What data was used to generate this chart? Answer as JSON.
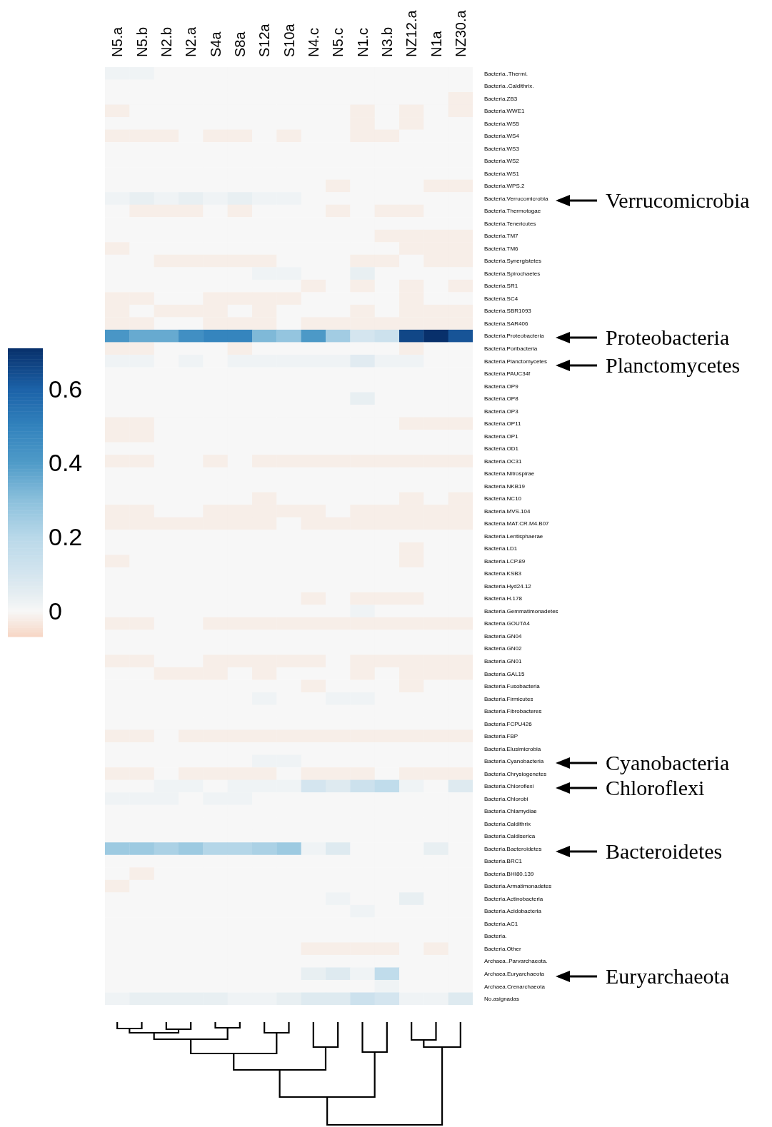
{
  "chart_data": {
    "type": "heatmap",
    "categories": [
      "N5.a",
      "N5.b",
      "N2.b",
      "N2.a",
      "S4a",
      "S8a",
      "S12a",
      "S10a",
      "N4.c",
      "N5.c",
      "N1.c",
      "N3.b",
      "NZ12.a",
      "N1a",
      "NZ30.a"
    ],
    "y_categories": [
      "Bacteria..Thermi.",
      "Bacteria..Caldithrix.",
      "Bacteria.ZB3",
      "Bacteria.WWE1",
      "Bacteria.WS5",
      "Bacteria.WS4",
      "Bacteria.WS3",
      "Bacteria.WS2",
      "Bacteria.WS1",
      "Bacteria.WPS.2",
      "Bacteria.Verrucomicrobia",
      "Bacteria.Thermotogae",
      "Bacteria.Tenericutes",
      "Bacteria.TM7",
      "Bacteria.TM6",
      "Bacteria.Synergistetes",
      "Bacteria.Spirochaetes",
      "Bacteria.SR1",
      "Bacteria.SC4",
      "Bacteria.SBR1093",
      "Bacteria.SAR406",
      "Bacteria.Proteobacteria",
      "Bacteria.Poribacteria",
      "Bacteria.Planctomycetes",
      "Bacteria.PAUC34f",
      "Bacteria.OP9",
      "Bacteria.OP8",
      "Bacteria.OP3",
      "Bacteria.OP11",
      "Bacteria.OP1",
      "Bacteria.OD1",
      "Bacteria.OC31",
      "Bacteria.Nitrospirae",
      "Bacteria.NKB19",
      "Bacteria.NC10",
      "Bacteria.MVS.104",
      "Bacteria.MAT.CR.M4.B07",
      "Bacteria.Lentisphaerae",
      "Bacteria.LD1",
      "Bacteria.LCP.89",
      "Bacteria.KSB3",
      "Bacteria.Hyd24.12",
      "Bacteria.H.178",
      "Bacteria.Gemmatimonadetes",
      "Bacteria.GOUTA4",
      "Bacteria.GN04",
      "Bacteria.GN02",
      "Bacteria.GN01",
      "Bacteria.GAL15",
      "Bacteria.Fusobacteria",
      "Bacteria.Firmicutes",
      "Bacteria.Fibrobacteres",
      "Bacteria.FCPU426",
      "Bacteria.FBP",
      "Bacteria.Elusimicrobia",
      "Bacteria.Cyanobacteria",
      "Bacteria.Chrysiogenetes",
      "Bacteria.Chloroflexi",
      "Bacteria.Chlorobi",
      "Bacteria.Chlamydiae",
      "Bacteria.Caldithrix",
      "Bacteria.Caldiserica",
      "Bacteria.Bacteroidetes",
      "Bacteria.BRC1",
      "Bacteria.BHI80.139",
      "Bacteria.Armatimonadetes",
      "Bacteria.Actinobacteria",
      "Bacteria.Acidobacteria",
      "Bacteria.AC1",
      "Bacteria.",
      "Bacteria.Other",
      "Archaea..Parvarchaeota.",
      "Archaea.Euryarchaeota",
      "Archaea.Crenarchaeota",
      "No.asignadas"
    ],
    "cells": [
      [
        0.02,
        0.02,
        0,
        0,
        0,
        0,
        0,
        0,
        0,
        0,
        0,
        0,
        0,
        0,
        0
      ],
      [
        0,
        0,
        0,
        0,
        0,
        0,
        0,
        0,
        0,
        0,
        0,
        0,
        0,
        0,
        0
      ],
      [
        0,
        0,
        0,
        0,
        0,
        0,
        0,
        0,
        0,
        0,
        0,
        0,
        0,
        0,
        -0.02
      ],
      [
        -0.02,
        0,
        0,
        0,
        0,
        0,
        0,
        0,
        0,
        0,
        -0.02,
        0,
        -0.02,
        0,
        -0.02
      ],
      [
        0,
        0,
        0,
        0,
        0,
        0,
        0,
        0,
        0,
        0,
        -0.02,
        0,
        -0.02,
        0,
        0
      ],
      [
        -0.02,
        -0.02,
        -0.02,
        0,
        -0.02,
        -0.02,
        0,
        -0.02,
        0,
        0,
        -0.02,
        -0.02,
        0,
        0,
        0
      ],
      [
        0,
        0,
        0,
        0,
        0,
        0,
        0,
        0,
        0,
        0,
        0,
        0,
        0,
        0,
        0
      ],
      [
        0,
        0,
        0,
        0,
        0,
        0,
        0,
        0,
        0,
        0,
        0,
        0,
        0,
        0,
        0
      ],
      [
        0,
        0,
        0,
        0,
        0,
        0,
        0,
        0,
        0,
        0,
        0,
        0,
        0,
        0,
        0
      ],
      [
        0,
        0,
        0,
        0,
        0,
        0,
        0,
        0,
        0,
        -0.02,
        0,
        0,
        0,
        -0.02,
        -0.02
      ],
      [
        0.02,
        0.04,
        0.02,
        0.04,
        0.02,
        0.04,
        0.02,
        0.02,
        0,
        0,
        0,
        0,
        0,
        0,
        0
      ],
      [
        0,
        -0.02,
        -0.02,
        -0.02,
        0,
        -0.02,
        0,
        0,
        0,
        -0.02,
        0,
        -0.02,
        -0.02,
        0,
        0
      ],
      [
        0,
        0,
        0,
        0,
        0,
        0,
        0,
        0,
        0,
        0,
        0,
        0,
        0,
        0,
        0
      ],
      [
        0,
        0,
        0,
        0,
        0,
        0,
        0,
        0,
        0,
        0,
        0,
        -0.02,
        -0.02,
        -0.02,
        -0.02
      ],
      [
        -0.02,
        0,
        0,
        0,
        0,
        0,
        0,
        0,
        0,
        0,
        0,
        0,
        -0.02,
        -0.02,
        -0.02
      ],
      [
        0,
        0,
        -0.02,
        -0.02,
        -0.02,
        -0.02,
        -0.02,
        0,
        0,
        0,
        -0.02,
        -0.02,
        0,
        -0.02,
        -0.02
      ],
      [
        0,
        0,
        0,
        0,
        0,
        0,
        0.02,
        0.02,
        0,
        0,
        0.04,
        0,
        0,
        0,
        0
      ],
      [
        0,
        0,
        0,
        0,
        0,
        0,
        0,
        0,
        -0.02,
        0,
        -0.02,
        0,
        -0.02,
        0,
        -0.02
      ],
      [
        -0.02,
        -0.02,
        0,
        0,
        -0.02,
        -0.02,
        -0.02,
        -0.02,
        0,
        0,
        0,
        0,
        -0.02,
        0,
        0
      ],
      [
        -0.02,
        0,
        -0.02,
        -0.02,
        -0.02,
        0,
        -0.02,
        0,
        0,
        0,
        -0.02,
        0,
        -0.02,
        -0.02,
        -0.02
      ],
      [
        -0.02,
        -0.02,
        0,
        0,
        -0.02,
        -0.02,
        -0.02,
        0,
        -0.02,
        -0.02,
        -0.02,
        -0.02,
        -0.02,
        -0.02,
        -0.02
      ],
      [
        0.42,
        0.36,
        0.36,
        0.45,
        0.49,
        0.49,
        0.32,
        0.28,
        0.41,
        0.25,
        0.1,
        0.13,
        0.66,
        0.71,
        0.63
      ],
      [
        -0.02,
        -0.02,
        0,
        0,
        0,
        -0.02,
        0,
        0,
        0,
        0,
        0,
        0,
        -0.02,
        0,
        0
      ],
      [
        0.02,
        0.02,
        0,
        0.02,
        0,
        0.02,
        0.02,
        0.02,
        0.02,
        0.02,
        0.06,
        0.02,
        0.02,
        0,
        0
      ],
      [
        0,
        0,
        0,
        0,
        0,
        0,
        0,
        0,
        0,
        0,
        0,
        0,
        0,
        0,
        0
      ],
      [
        0,
        0,
        0,
        0,
        0,
        0,
        0,
        0,
        0,
        0,
        0,
        0,
        0,
        0,
        0
      ],
      [
        0,
        0,
        0,
        0,
        0,
        0,
        0,
        0,
        0,
        0,
        0.04,
        0,
        0,
        0,
        0
      ],
      [
        0,
        0,
        0,
        0,
        0,
        0,
        0,
        0,
        0,
        0,
        0,
        0,
        0,
        0,
        0
      ],
      [
        -0.02,
        -0.02,
        0,
        0,
        0,
        0,
        0,
        0,
        0,
        0,
        0,
        0,
        -0.02,
        -0.02,
        -0.02
      ],
      [
        -0.02,
        -0.02,
        0,
        0,
        0,
        0,
        0,
        0,
        0,
        0,
        0,
        0,
        0,
        0,
        0
      ],
      [
        0,
        0,
        0,
        0,
        0,
        0,
        0,
        0,
        0,
        0,
        0,
        0,
        0,
        0,
        0
      ],
      [
        -0.02,
        -0.02,
        0,
        0,
        -0.02,
        0,
        -0.02,
        -0.02,
        -0.02,
        -0.02,
        -0.02,
        -0.02,
        -0.02,
        -0.02,
        -0.02
      ],
      [
        0,
        0,
        0,
        0,
        0,
        0,
        0,
        0,
        0,
        0,
        0,
        0,
        0,
        0,
        0
      ],
      [
        0,
        0,
        0,
        0,
        0,
        0,
        0,
        0,
        0,
        0,
        0,
        0,
        0,
        0,
        0
      ],
      [
        0,
        0,
        0,
        0,
        0,
        0,
        -0.02,
        0,
        0,
        0,
        0,
        0,
        -0.02,
        0,
        -0.02
      ],
      [
        -0.02,
        -0.02,
        0,
        0,
        -0.02,
        -0.02,
        -0.02,
        -0.02,
        -0.02,
        0,
        -0.02,
        -0.02,
        -0.02,
        -0.02,
        -0.02
      ],
      [
        -0.02,
        -0.02,
        -0.02,
        -0.02,
        -0.02,
        -0.02,
        -0.02,
        0,
        -0.02,
        -0.02,
        -0.02,
        -0.02,
        -0.02,
        -0.02,
        -0.02
      ],
      [
        0,
        0,
        0,
        0,
        0,
        0,
        0,
        0,
        0,
        0,
        0,
        0,
        0,
        0,
        0
      ],
      [
        0,
        0,
        0,
        0,
        0,
        0,
        0,
        0,
        0,
        0,
        0,
        0,
        -0.02,
        0,
        0
      ],
      [
        -0.02,
        0,
        0,
        0,
        0,
        0,
        0,
        0,
        0,
        0,
        0,
        0,
        -0.02,
        0,
        0
      ],
      [
        0,
        0,
        0,
        0,
        0,
        0,
        0,
        0,
        0,
        0,
        0,
        0,
        0,
        0,
        0
      ],
      [
        0,
        0,
        0,
        0,
        0,
        0,
        0,
        0,
        0,
        0,
        0,
        0,
        0,
        0,
        0
      ],
      [
        0,
        0,
        0,
        0,
        0,
        0,
        0,
        0,
        -0.02,
        0,
        -0.02,
        -0.02,
        -0.02,
        0,
        0
      ],
      [
        0,
        0,
        0,
        0,
        0,
        0,
        0,
        0,
        0,
        0,
        0.02,
        0,
        0,
        0,
        0
      ],
      [
        -0.02,
        -0.02,
        0,
        0,
        -0.02,
        -0.02,
        -0.02,
        -0.02,
        -0.02,
        -0.02,
        -0.02,
        -0.02,
        -0.02,
        -0.02,
        -0.02
      ],
      [
        0,
        0,
        0,
        0,
        0,
        0,
        0,
        0,
        0,
        0,
        0,
        0,
        0,
        0,
        0
      ],
      [
        0,
        0,
        0,
        0,
        0,
        0,
        0,
        0,
        0,
        0,
        0,
        0,
        0,
        0,
        0
      ],
      [
        -0.02,
        -0.02,
        0,
        0,
        -0.02,
        -0.02,
        -0.02,
        -0.02,
        -0.02,
        0,
        -0.02,
        -0.02,
        -0.02,
        -0.02,
        -0.02
      ],
      [
        0,
        0,
        -0.02,
        -0.02,
        -0.02,
        0,
        -0.02,
        0,
        0,
        0,
        -0.02,
        0,
        -0.02,
        -0.02,
        -0.02
      ],
      [
        0,
        0,
        0,
        0,
        0,
        0,
        0,
        0,
        -0.02,
        0,
        0,
        0,
        -0.02,
        0,
        0
      ],
      [
        0,
        0,
        0,
        0,
        0,
        0,
        0.02,
        0,
        0,
        0.02,
        0.02,
        0,
        0,
        0,
        0
      ],
      [
        0,
        0,
        0,
        0,
        0,
        0,
        0,
        0,
        0,
        0,
        0,
        0,
        0,
        0,
        0
      ],
      [
        0,
        0,
        0,
        0,
        0,
        0,
        0,
        0,
        0,
        0,
        0,
        0,
        0,
        0,
        0
      ],
      [
        -0.02,
        -0.02,
        0,
        -0.02,
        -0.02,
        -0.02,
        -0.02,
        -0.02,
        -0.02,
        -0.02,
        -0.02,
        -0.02,
        -0.02,
        -0.02,
        -0.02
      ],
      [
        0,
        0,
        0,
        0,
        0,
        0,
        0,
        0,
        0,
        0,
        0,
        0,
        0,
        0,
        0
      ],
      [
        0,
        0,
        0,
        0,
        0,
        0,
        0.02,
        0.02,
        0,
        0,
        0,
        0,
        0,
        0,
        0
      ],
      [
        -0.02,
        -0.02,
        0,
        -0.02,
        -0.02,
        -0.02,
        -0.02,
        0,
        -0.02,
        -0.02,
        -0.02,
        0,
        -0.02,
        -0.02,
        -0.02
      ],
      [
        0,
        0,
        0.02,
        0.02,
        0,
        0.02,
        0.02,
        0.02,
        0.1,
        0.07,
        0.13,
        0.17,
        0.02,
        0,
        0.07
      ],
      [
        0.02,
        0.02,
        0.02,
        0,
        0.02,
        0.02,
        0,
        0,
        0,
        0,
        0,
        0,
        0,
        0,
        0
      ],
      [
        0,
        0,
        0,
        0,
        0,
        0,
        0,
        0,
        0,
        0,
        0,
        0,
        0,
        0,
        0
      ],
      [
        0,
        0,
        0,
        0,
        0,
        0,
        0,
        0,
        0,
        0,
        0,
        0,
        0,
        0,
        0
      ],
      [
        0,
        0,
        0,
        0,
        0,
        0,
        0,
        0,
        0,
        0,
        0,
        0,
        0,
        0,
        0
      ],
      [
        0.26,
        0.26,
        0.23,
        0.26,
        0.21,
        0.21,
        0.23,
        0.26,
        0.02,
        0.07,
        0,
        0,
        0,
        0.04,
        0
      ],
      [
        0,
        0,
        0,
        0,
        0,
        0,
        0,
        0,
        0,
        0,
        0,
        0,
        0,
        0,
        0
      ],
      [
        0,
        -0.02,
        0,
        0,
        0,
        0,
        0,
        0,
        0,
        0,
        0,
        0,
        0,
        0,
        0
      ],
      [
        -0.02,
        0,
        0,
        0,
        0,
        0,
        0,
        0,
        0,
        0,
        0,
        0,
        0,
        0,
        0
      ],
      [
        0,
        0,
        0,
        0,
        0,
        0,
        0,
        0,
        0,
        0.02,
        0,
        0,
        0.04,
        0,
        0
      ],
      [
        0,
        0,
        0,
        0,
        0,
        0,
        0,
        0,
        0,
        0,
        0.02,
        0,
        0,
        0,
        0
      ],
      [
        0,
        0,
        0,
        0,
        0,
        0,
        0,
        0,
        0,
        0,
        0,
        0,
        0,
        0,
        0
      ],
      [
        0,
        0,
        0,
        0,
        0,
        0,
        0,
        0,
        0,
        0,
        0,
        0,
        0,
        0,
        0
      ],
      [
        0,
        0,
        0,
        0,
        0,
        0,
        0,
        0,
        -0.02,
        -0.02,
        -0.02,
        -0.02,
        0,
        -0.02,
        0
      ],
      [
        0,
        0,
        0,
        0,
        0,
        0,
        0,
        0,
        0,
        0,
        0,
        0,
        0,
        0,
        0
      ],
      [
        0,
        0,
        0,
        0,
        0,
        0,
        0,
        0,
        0.04,
        0.07,
        0.02,
        0.17,
        0,
        0,
        0
      ],
      [
        0,
        0,
        0,
        0,
        0,
        0,
        0,
        0,
        0,
        0,
        0,
        0.02,
        0,
        0,
        0
      ],
      [
        0.02,
        0.04,
        0.04,
        0.04,
        0.04,
        0.02,
        0.02,
        0.04,
        0.07,
        0.07,
        0.13,
        0.1,
        0.02,
        0.02,
        0.07
      ]
    ],
    "clim": [
      -0.07,
      0.71
    ],
    "cticks": [
      0,
      0.2,
      0.4,
      0.6
    ],
    "annotations": [
      "Verrucomicrobia",
      "Proteobacteria",
      "Planctomycetes",
      "Cyanobacteria",
      "Chloroflexi",
      "Bacteroidetes",
      "Euryarchaeota"
    ]
  }
}
